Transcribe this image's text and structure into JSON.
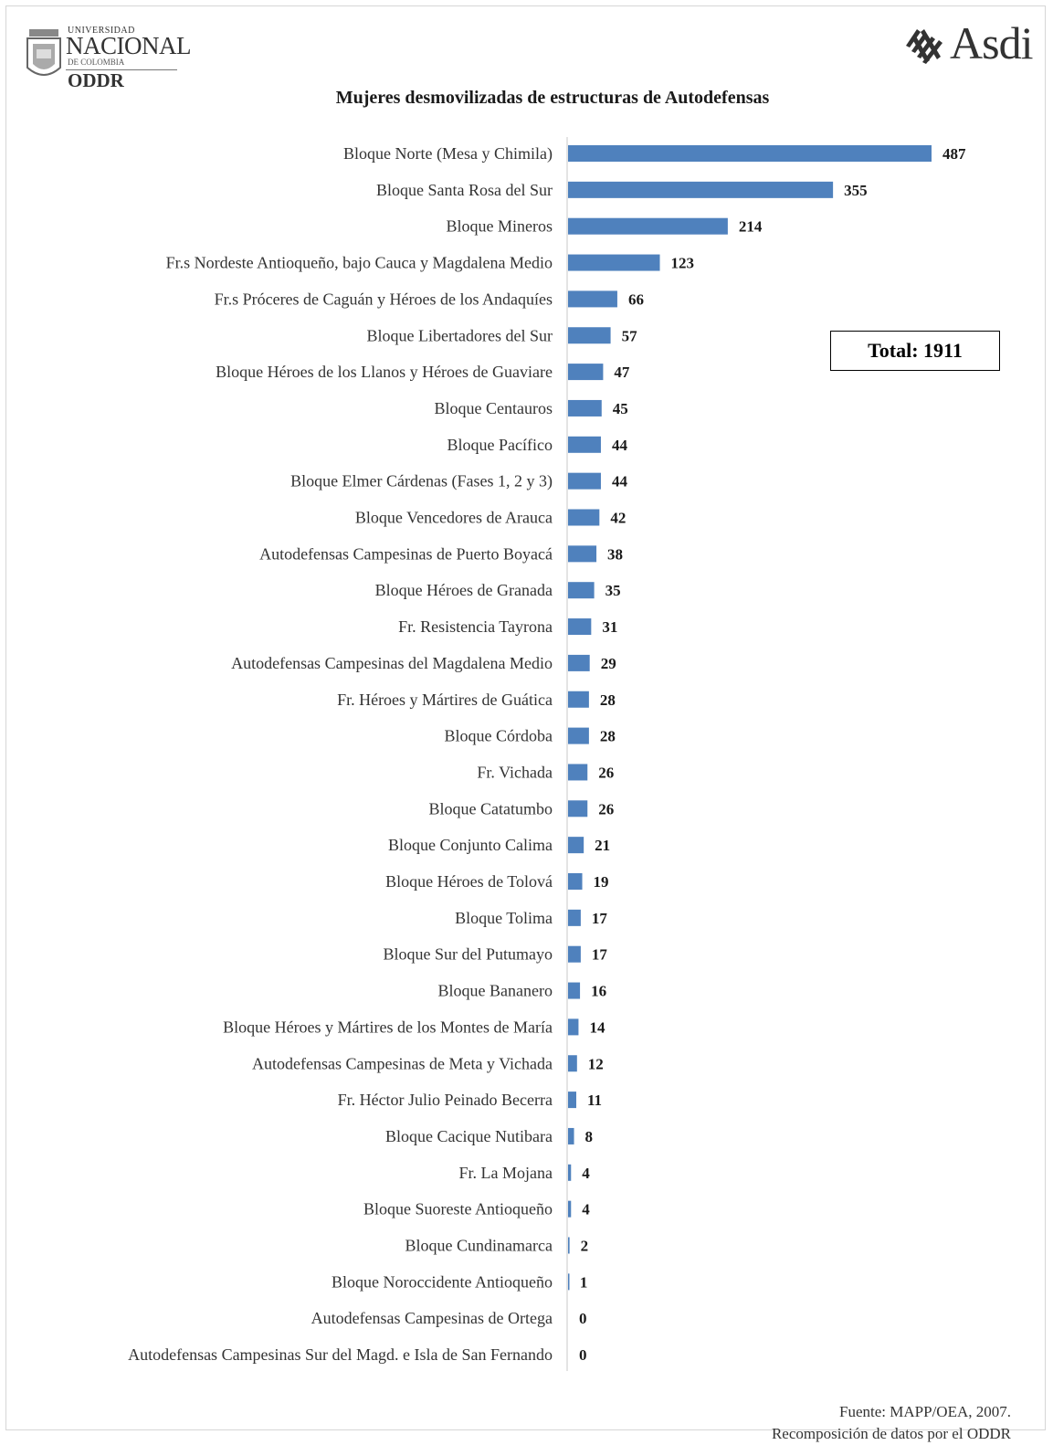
{
  "logos": {
    "left": {
      "line1": "UNIVERSIDAD",
      "line2": "NACIONAL",
      "line3": "DE COLOMBIA",
      "line4": "ODDR"
    },
    "right": {
      "icon": "asdi-logo-mark",
      "text": "Asdi"
    }
  },
  "chart_data": {
    "type": "bar",
    "orientation": "horizontal",
    "title": "Mujeres desmovilizadas de estructuras de Autodefensas",
    "xlabel": "",
    "ylabel": "",
    "grid": false,
    "legend": "none",
    "bar_color": "#4f81bd",
    "xlim": [
      0,
      487
    ],
    "categories": [
      "Bloque Norte (Mesa y Chimila)",
      "Bloque Santa Rosa del Sur",
      "Bloque Mineros",
      "Fr.s Nordeste Antioqueño, bajo Cauca y Magdalena Medio",
      "Fr.s Próceres de Caguán y Héroes de los Andaquíes",
      "Bloque Libertadores del Sur",
      "Bloque Héroes de los Llanos y Héroes de Guaviare",
      "Bloque Centauros",
      "Bloque Pacífico",
      "Bloque Elmer Cárdenas (Fases 1, 2 y 3)",
      "Bloque Vencedores de Arauca",
      "Autodefensas Campesinas de Puerto Boyacá",
      "Bloque Héroes de Granada",
      "Fr. Resistencia Tayrona",
      "Autodefensas Campesinas del Magdalena Medio",
      "Fr. Héroes y Mártires de Guática",
      "Bloque Córdoba",
      "Fr. Vichada",
      "Bloque Catatumbo",
      "Bloque Conjunto Calima",
      "Bloque Héroes de Tolová",
      "Bloque Tolima",
      "Bloque Sur del Putumayo",
      "Bloque Bananero",
      "Bloque Héroes y Mártires de los Montes de María",
      "Autodefensas Campesinas de Meta y Vichada",
      "Fr. Héctor Julio Peinado Becerra",
      "Bloque Cacique Nutibara",
      "Fr. La Mojana",
      "Bloque Suoreste Antioqueño",
      "Bloque Cundinamarca",
      "Bloque Noroccidente Antioqueño",
      "Autodefensas Campesinas de Ortega",
      "Autodefensas Campesinas Sur del Magd. e Isla de San Fernando"
    ],
    "values": [
      487,
      355,
      214,
      123,
      66,
      57,
      47,
      45,
      44,
      44,
      42,
      38,
      35,
      31,
      29,
      28,
      28,
      26,
      26,
      21,
      19,
      17,
      17,
      16,
      14,
      12,
      11,
      8,
      4,
      4,
      2,
      1,
      0,
      0
    ],
    "annotations": [
      {
        "text": "Total: 1911"
      }
    ]
  },
  "source": {
    "line1": "Fuente: MAPP/OEA, 2007.",
    "line2": "Recomposición de datos por el ODDR"
  }
}
